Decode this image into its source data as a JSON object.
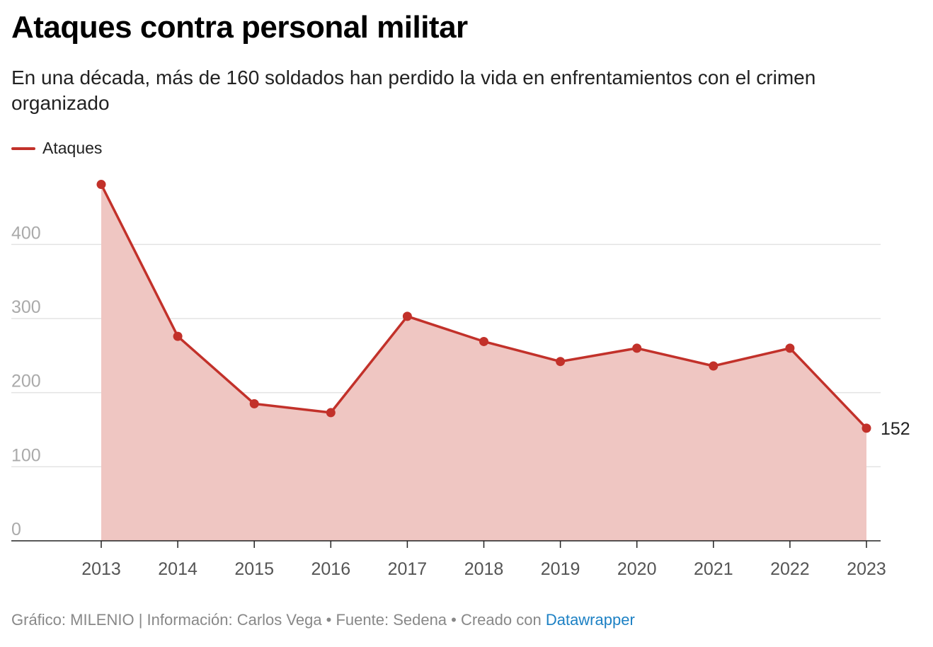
{
  "header": {
    "title": "Ataques contra personal militar",
    "subtitle": "En una década, más de 160 soldados han perdido la vida en enfrentamientos con el crimen organizado"
  },
  "legend": {
    "label": "Ataques",
    "color": "#c2312a"
  },
  "colors": {
    "line": "#c2312a",
    "area": "#efc6c2",
    "grid": "#e3e3e3",
    "axis": "#222222",
    "y_tick_label": "#aaaaaa",
    "x_tick_label": "#555555",
    "link": "#1d81c4"
  },
  "chart_data": {
    "type": "area",
    "title": "Ataques contra personal militar",
    "subtitle": "En una década, más de 160 soldados han perdido la vida en enfrentamientos con el crimen organizado",
    "xlabel": "",
    "ylabel": "",
    "categories": [
      "2013",
      "2014",
      "2015",
      "2016",
      "2017",
      "2018",
      "2019",
      "2020",
      "2021",
      "2022",
      "2023"
    ],
    "series": [
      {
        "name": "Ataques",
        "values": [
          481,
          276,
          185,
          173,
          303,
          269,
          242,
          260,
          236,
          260,
          152
        ]
      }
    ],
    "y_ticks": [
      0,
      100,
      200,
      300,
      400
    ],
    "ylim": [
      0,
      481
    ],
    "grid": true,
    "legend": "top-left",
    "annotations": [
      {
        "category": "2023",
        "text": "152"
      }
    ]
  },
  "footer": {
    "credit": "Gráfico: MILENIO | Información: Carlos Vega  • Fuente: Sedena • Creado con ",
    "link_text": "Datawrapper"
  }
}
